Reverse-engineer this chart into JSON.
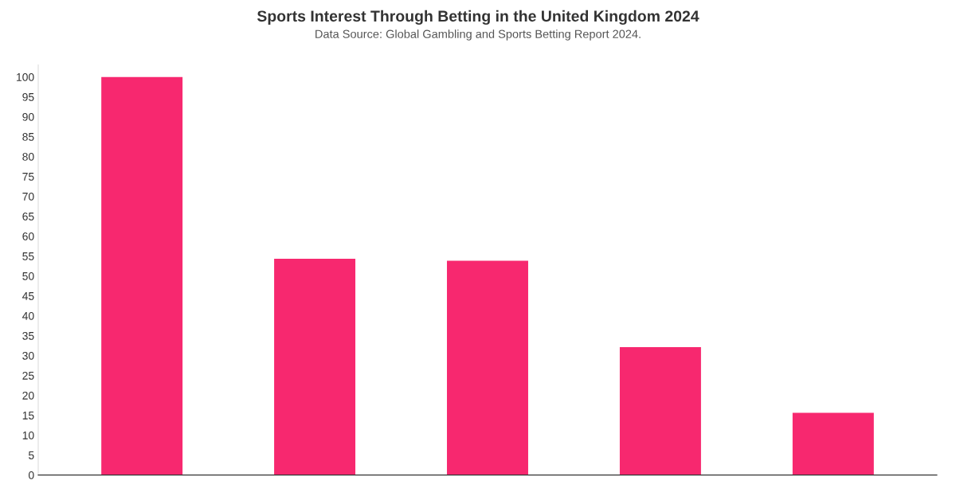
{
  "chart_data": {
    "type": "bar",
    "title": "Sports Interest Through Betting in the United Kingdom 2024",
    "subtitle": "Data Source: Global Gambling and Sports Betting Report 2024.",
    "categories": [
      null,
      null,
      null,
      null,
      null
    ],
    "values": [
      100,
      54.3,
      53.8,
      32.1,
      15.6
    ],
    "color": "#f7286f",
    "ylim": [
      0,
      103
    ],
    "yticks": [
      0,
      5,
      10,
      15,
      20,
      25,
      30,
      35,
      40,
      45,
      50,
      55,
      60,
      65,
      70,
      75,
      80,
      85,
      90,
      95,
      100
    ],
    "grid": false
  }
}
